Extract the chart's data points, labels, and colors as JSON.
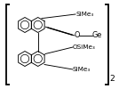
{
  "bg_color": "#ffffff",
  "text_color": "#000000",
  "labels": {
    "SiMe3_top": "SiMe₃",
    "O": "O",
    "OSiMe3": "OSiMe₃",
    "SiMe3_bot": "SiMe₃",
    "Ge": "Ge",
    "subscript2": "2"
  },
  "figsize": [
    1.43,
    1.0
  ],
  "dpi": 100,
  "lw": 0.65,
  "fs_main": 5.2,
  "fs_label": 5.8
}
